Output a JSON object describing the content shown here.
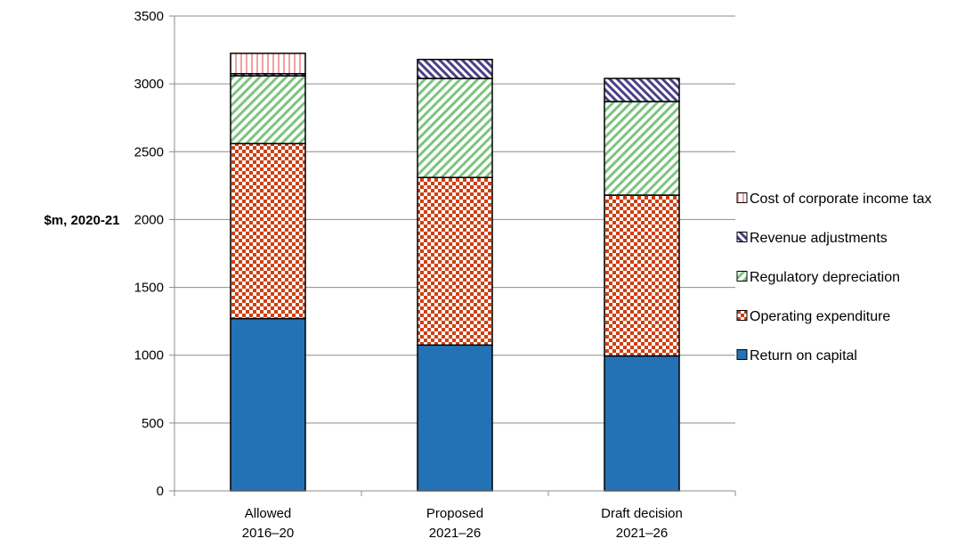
{
  "chart_data": {
    "type": "bar",
    "stacked": true,
    "ylabel": "$m, 2020-21",
    "ylim": [
      0,
      3500
    ],
    "ytick_step": 500,
    "yticks": [
      "0",
      "500",
      "1000",
      "1500",
      "2000",
      "2500",
      "3000",
      "3500"
    ],
    "grid": true,
    "legend_position": "right",
    "categories": [
      [
        "Allowed",
        "2016–20"
      ],
      [
        "Proposed",
        "2021–26"
      ],
      [
        "Draft decision",
        "2021–26"
      ]
    ],
    "series": [
      {
        "name": "Return on capital",
        "values": [
          1270,
          1075,
          995
        ],
        "color": "#2372b5",
        "pattern": "solid"
      },
      {
        "name": "Operating expenditure",
        "values": [
          1290,
          1235,
          1185
        ],
        "color": "#cf3f11",
        "pattern": "checker"
      },
      {
        "name": "Regulatory depreciation",
        "values": [
          500,
          730,
          690
        ],
        "color": "#7cc47f",
        "pattern": "diagonal"
      },
      {
        "name": "Revenue adjustments",
        "values": [
          15,
          140,
          170
        ],
        "color": "#4b3f87",
        "pattern": "crosshatch"
      },
      {
        "name": "Cost of corporate income tax",
        "values": [
          150,
          0,
          0
        ],
        "color": "#f2a0a0",
        "pattern": "vertical"
      }
    ],
    "legend_order": [
      "Cost of corporate income tax",
      "Revenue adjustments",
      "Regulatory depreciation",
      "Operating expenditure",
      "Return on capital"
    ]
  }
}
